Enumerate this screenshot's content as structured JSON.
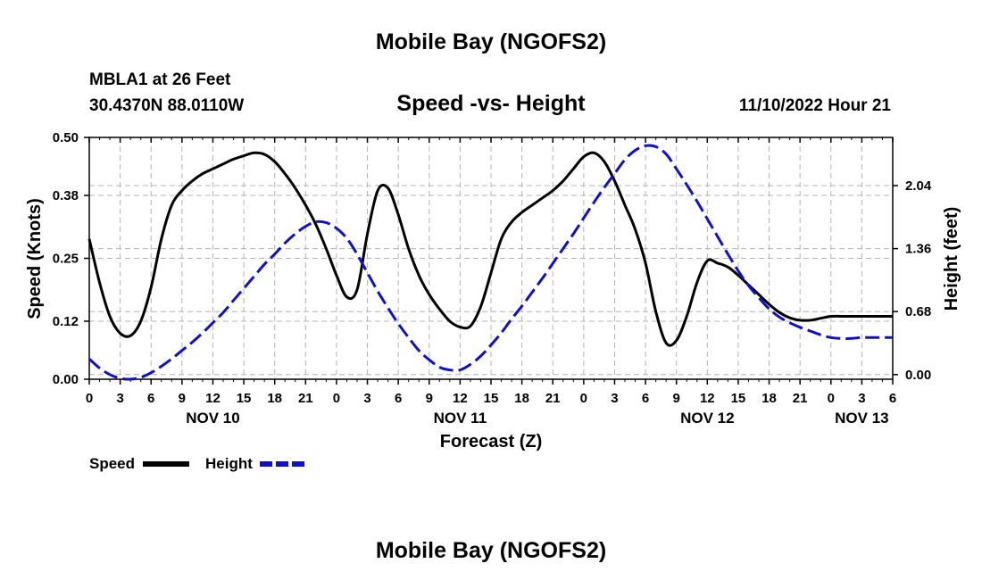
{
  "page": {
    "title_top": "Mobile Bay (NGOFS2)",
    "title_bottom": "Mobile Bay (NGOFS2)"
  },
  "header": {
    "station": "MBLA1 at 26 Feet",
    "coords": "30.4370N  88.0110W",
    "subtitle": "Speed -vs- Height",
    "datetime": "11/10/2022 Hour 21"
  },
  "legend": {
    "speed_label": "Speed",
    "height_label": "Height"
  },
  "colors": {
    "speed": "#000000",
    "height": "#1010c8",
    "grid": "#b4b4b4"
  },
  "chart_data": {
    "type": "line",
    "xlabel": "Forecast (Z)",
    "ylabel": "Speed (Knots)",
    "y2label": "Height (feet)",
    "x_unit": "hours since NOV 10 00Z",
    "xlim": [
      0,
      78
    ],
    "ylim": [
      0,
      0.5
    ],
    "y2lim": [
      -0.05,
      2.56
    ],
    "x_ticks": [
      0,
      3,
      6,
      9,
      12,
      15,
      18,
      21,
      24,
      27,
      30,
      33,
      36,
      39,
      42,
      45,
      48,
      51,
      54,
      57,
      60,
      63,
      66,
      69,
      72,
      75,
      78
    ],
    "x_tick_labels": [
      "0",
      "3",
      "6",
      "9",
      "12",
      "15",
      "18",
      "21",
      "0",
      "3",
      "6",
      "9",
      "12",
      "15",
      "18",
      "21",
      "0",
      "3",
      "6",
      "9",
      "12",
      "15",
      "18",
      "21",
      "0",
      "3",
      "6"
    ],
    "day_labels": [
      {
        "x": 12,
        "label": "NOV 10"
      },
      {
        "x": 36,
        "label": "NOV 11"
      },
      {
        "x": 60,
        "label": "NOV 12"
      },
      {
        "x": 75,
        "label": "NOV 13"
      }
    ],
    "y_ticks": [
      0.0,
      0.12,
      0.25,
      0.38,
      0.5
    ],
    "y_tick_labels": [
      "0.00",
      "0.12",
      "0.25",
      "0.38",
      "0.50"
    ],
    "y2_ticks": [
      0.0,
      0.68,
      1.36,
      2.04
    ],
    "y2_tick_labels": [
      "0.00",
      "0.68",
      "1.36",
      "2.04"
    ],
    "series": [
      {
        "name": "Speed",
        "axis": "left",
        "style": "solid",
        "x": [
          0,
          1,
          2,
          3,
          4,
          5,
          6,
          7,
          8,
          9,
          10,
          11,
          12,
          13,
          14,
          15,
          16,
          17,
          18,
          19,
          20,
          21,
          22,
          23,
          24,
          25,
          26,
          27,
          28,
          29,
          30,
          31,
          32,
          33,
          34,
          35,
          36,
          37,
          38,
          39,
          40,
          41,
          42,
          43,
          44,
          45,
          46,
          47,
          48,
          49,
          50,
          51,
          52,
          53,
          54,
          55,
          56,
          57,
          58,
          59,
          60,
          61,
          62,
          63,
          64,
          65,
          66,
          67,
          68,
          69,
          70,
          71,
          72,
          73,
          74,
          75,
          76,
          77,
          78
        ],
        "values": [
          0.29,
          0.2,
          0.13,
          0.095,
          0.09,
          0.12,
          0.19,
          0.29,
          0.36,
          0.39,
          0.41,
          0.425,
          0.435,
          0.445,
          0.455,
          0.462,
          0.468,
          0.465,
          0.45,
          0.425,
          0.395,
          0.36,
          0.32,
          0.27,
          0.215,
          0.17,
          0.185,
          0.3,
          0.39,
          0.395,
          0.34,
          0.27,
          0.215,
          0.175,
          0.145,
          0.12,
          0.108,
          0.11,
          0.15,
          0.22,
          0.29,
          0.325,
          0.345,
          0.36,
          0.375,
          0.39,
          0.41,
          0.435,
          0.46,
          0.468,
          0.45,
          0.41,
          0.36,
          0.31,
          0.24,
          0.14,
          0.075,
          0.08,
          0.13,
          0.2,
          0.245,
          0.24,
          0.232,
          0.215,
          0.195,
          0.175,
          0.155,
          0.138,
          0.127,
          0.122,
          0.122,
          0.126,
          0.13,
          0.13,
          0.13,
          0.13,
          0.13,
          0.13,
          0.13
        ]
      },
      {
        "name": "Height",
        "axis": "right",
        "style": "dashed",
        "x": [
          0,
          1,
          2,
          3,
          4,
          5,
          6,
          7,
          8,
          9,
          10,
          11,
          12,
          13,
          14,
          15,
          16,
          17,
          18,
          19,
          20,
          21,
          22,
          23,
          24,
          25,
          26,
          27,
          28,
          29,
          30,
          31,
          32,
          33,
          34,
          35,
          36,
          37,
          38,
          39,
          40,
          41,
          42,
          43,
          44,
          45,
          46,
          47,
          48,
          49,
          50,
          51,
          52,
          53,
          54,
          55,
          56,
          57,
          58,
          59,
          60,
          61,
          62,
          63,
          64,
          65,
          66,
          67,
          68,
          69,
          70,
          71,
          72,
          73,
          74,
          75,
          76,
          77,
          78
        ],
        "values": [
          0.17,
          0.07,
          0.0,
          -0.04,
          -0.05,
          -0.03,
          0.02,
          0.09,
          0.17,
          0.26,
          0.35,
          0.45,
          0.56,
          0.67,
          0.8,
          0.93,
          1.06,
          1.19,
          1.3,
          1.42,
          1.52,
          1.6,
          1.65,
          1.64,
          1.58,
          1.47,
          1.3,
          1.1,
          0.9,
          0.72,
          0.55,
          0.4,
          0.26,
          0.16,
          0.08,
          0.05,
          0.05,
          0.11,
          0.2,
          0.32,
          0.45,
          0.6,
          0.74,
          0.89,
          1.04,
          1.2,
          1.36,
          1.52,
          1.69,
          1.86,
          2.02,
          2.17,
          2.32,
          2.42,
          2.47,
          2.46,
          2.38,
          2.22,
          2.05,
          1.87,
          1.68,
          1.49,
          1.3,
          1.12,
          0.96,
          0.83,
          0.71,
          0.62,
          0.56,
          0.51,
          0.47,
          0.43,
          0.4,
          0.39,
          0.39,
          0.4,
          0.4,
          0.4,
          0.4
        ]
      }
    ]
  }
}
